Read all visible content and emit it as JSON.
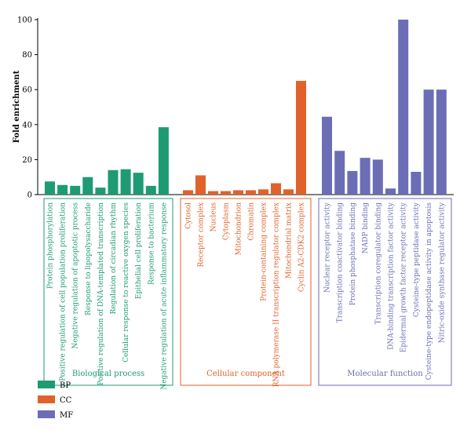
{
  "chart_data": {
    "type": "bar",
    "ylabel": "Fold enrichment",
    "ylim": [
      0,
      100
    ],
    "yticks": [
      0,
      20,
      40,
      60,
      80,
      100
    ],
    "grid": false,
    "legend": "bottom-left",
    "colors": {
      "BP": "#1e9b72",
      "CC": "#e0622a",
      "MF": "#6b6db5"
    },
    "groups": [
      {
        "key": "BP",
        "name": "Biological process",
        "categories": [
          "Protein phosphorylation",
          "Positive regulation of cell population proliferation",
          "Negative regulation of apoptotic process",
          "Response to lipopolysaccharide",
          "Positive regulation of DNA-templated transcription",
          "Regulation of circadian rhythm",
          "Cellular response to reactive oxygen species",
          "Epithelial cell proliferation",
          "Response to bacterium",
          "Negative regulation of acute inflammatory response"
        ],
        "values": [
          7.5,
          5.5,
          5,
          10,
          4,
          14,
          14.5,
          12.5,
          5,
          38.5
        ]
      },
      {
        "key": "CC",
        "name": "Cellular component",
        "categories": [
          "Cytosol",
          "Receptor complex",
          "Nucleus",
          "Cytoplasm",
          "Mitochondrion",
          "Chromatin",
          "Protein-containing complex",
          "RNA polymerase II transcription regulator complex",
          "Mitochondrial matrix",
          "Cyclin A2-CDK2 complex"
        ],
        "values": [
          2.5,
          11,
          2,
          2,
          2.5,
          2.5,
          3,
          6.5,
          3,
          65
        ]
      },
      {
        "key": "MF",
        "name": "Molecular function",
        "categories": [
          "Nuclear receptor activity",
          "Transcription coactivator binding",
          "Protein phosphatase binding",
          "NADP binding",
          "Transcription coregulator binding",
          "DNA-binding transcription factor activity",
          "Epidermal growth factor receptor activity",
          "Cysteine-type peptidase activity",
          "Cysteine-type endopeptidase activity in apoptosis",
          "Nitric-oxide synthase regulator activity"
        ],
        "values": [
          44.5,
          25,
          13.5,
          21,
          20,
          3.5,
          100,
          13,
          60,
          60
        ]
      }
    ],
    "legend_entries": [
      "BP",
      "CC",
      "MF"
    ]
  }
}
